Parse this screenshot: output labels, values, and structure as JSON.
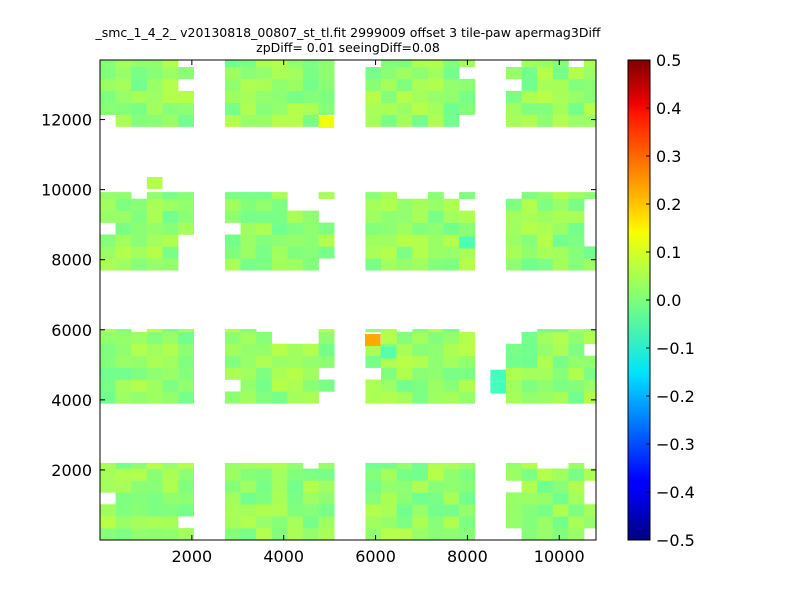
{
  "chart_data": {
    "type": "heatmap",
    "title": "_smc_1_4_2_ v20130818_00807_st_tl.fit 2999009 offset 3 tile-paw apermag3Diff",
    "subtitle": "zpDiff= 0.01 seeingDiff=0.08",
    "xlabel": "",
    "ylabel": "",
    "xlim": [
      0,
      10800
    ],
    "ylim": [
      0,
      13700
    ],
    "x_ticks": [
      2000,
      4000,
      6000,
      8000,
      10000
    ],
    "y_ticks": [
      2000,
      4000,
      6000,
      8000,
      10000,
      12000
    ],
    "x_tick_labels": [
      "2000",
      "4000",
      "6000",
      "8000",
      "10000"
    ],
    "y_tick_labels": [
      "2000",
      "4000",
      "6000",
      "8000",
      "10000",
      "12000"
    ],
    "colorbar": {
      "range": [
        -0.5,
        0.5
      ],
      "colormap": "jet",
      "ticks": [
        0.5,
        0.4,
        0.3,
        0.2,
        0.1,
        0.0,
        -0.1,
        -0.2,
        -0.3,
        -0.4,
        -0.5
      ],
      "tick_labels": [
        "0.5",
        "0.4",
        "0.3",
        "0.2",
        "0.1",
        "0.0",
        "−0.1",
        "−0.2",
        "−0.3",
        "−0.4",
        "−0.5"
      ]
    },
    "cell_size": 340,
    "column_blocks": [
      [
        0,
        2040
      ],
      [
        2720,
        5100
      ],
      [
        5780,
        8160
      ],
      [
        8840,
        10800
      ]
    ],
    "row_blocks": [
      [
        0,
        2200
      ],
      [
        3900,
        6020
      ],
      [
        7700,
        9930
      ],
      [
        11800,
        13700
      ]
    ],
    "cell_value_mean": 0.02,
    "outliers": [
      {
        "x": 5940,
        "y": 5710,
        "value": 0.21
      },
      {
        "x": 4930,
        "y": 11930,
        "value": 0.11
      },
      {
        "x": 1190,
        "y": 10190,
        "value": 0.05
      },
      {
        "x": 7990,
        "y": 8490,
        "value": -0.05
      },
      {
        "x": 8670,
        "y": 4690,
        "value": -0.06
      },
      {
        "x": 8670,
        "y": 4350,
        "value": -0.06
      },
      {
        "x": 6280,
        "y": 5350,
        "value": -0.04
      }
    ]
  }
}
